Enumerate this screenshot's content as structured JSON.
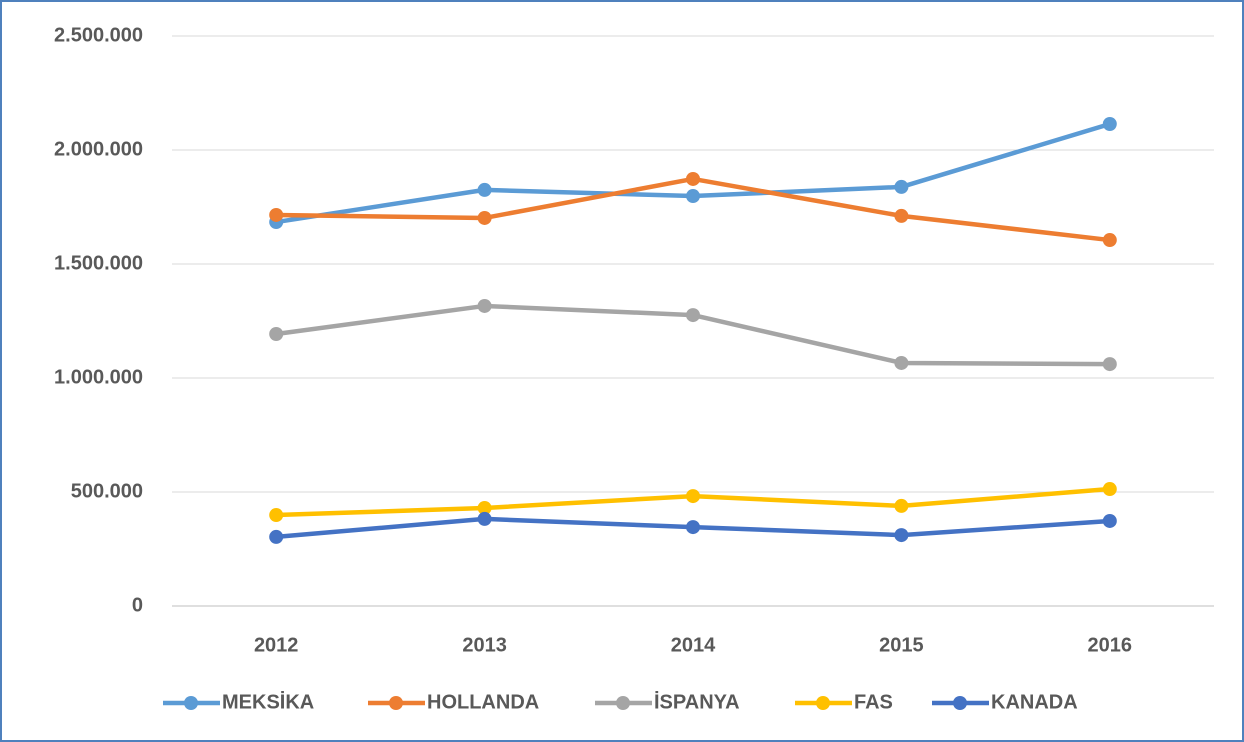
{
  "chart_data": {
    "type": "line",
    "categories": [
      "2012",
      "2013",
      "2014",
      "2015",
      "2016"
    ],
    "series": [
      {
        "name": "MEKSİKA",
        "color": "#5b9bd5",
        "values": [
          1684000,
          1825000,
          1798000,
          1838000,
          2114000
        ]
      },
      {
        "name": "HOLLANDA",
        "color": "#ed7d31",
        "values": [
          1715000,
          1702000,
          1873000,
          1711000,
          1605000
        ]
      },
      {
        "name": "İSPANYA",
        "color": "#a5a5a5",
        "values": [
          1193000,
          1316000,
          1276000,
          1066000,
          1061000
        ]
      },
      {
        "name": "FAS",
        "color": "#ffc000",
        "values": [
          399000,
          430000,
          482000,
          439000,
          513000
        ]
      },
      {
        "name": "KANADA",
        "color": "#4472c4",
        "values": [
          303000,
          382000,
          346000,
          311000,
          373000
        ]
      }
    ],
    "ylim": [
      0,
      2500000
    ],
    "yticks": [
      0,
      {
        "value": 500000,
        "label": "500.000"
      },
      {
        "value": 1000000,
        "label": "1.000.000"
      },
      {
        "value": 1500000,
        "label": "1.500.000"
      },
      {
        "value": 2000000,
        "label": "2.000.000"
      },
      {
        "value": 2500000,
        "label": "2.500.000"
      }
    ],
    "grid": true,
    "legend": "bottom"
  }
}
